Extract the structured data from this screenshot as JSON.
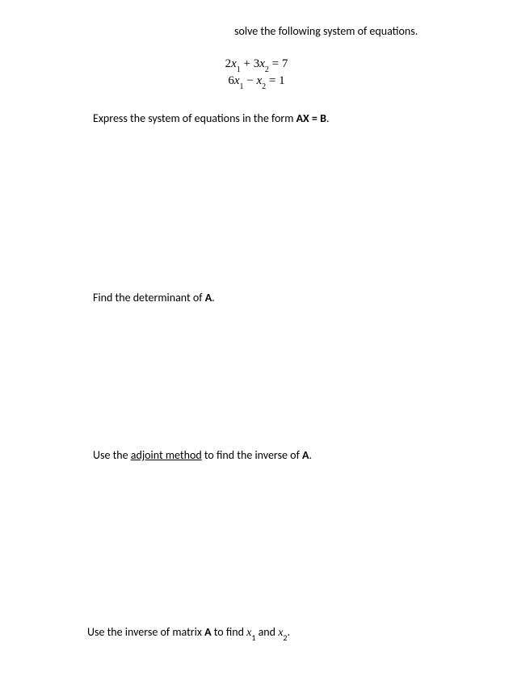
{
  "intro": "solve the following system of equations.",
  "equations": {
    "line1": {
      "lhs_coef1": "2",
      "var1": "x",
      "sub1": "1",
      "op1": " + ",
      "lhs_coef2": "3",
      "var2": "x",
      "sub2": "2",
      "eq": " = ",
      "rhs": "7"
    },
    "line2": {
      "lhs_coef1": "6",
      "var1": "x",
      "sub1": "1",
      "op1": " − ",
      "var2": "x",
      "sub2": "2",
      "eq": " = ",
      "rhs": "1"
    }
  },
  "prompt1": {
    "pre": "Express the system of equations in the form ",
    "ax": "AX",
    "mid": " = ",
    "b": "B",
    "post": "."
  },
  "prompt2": {
    "pre": "Find the determinant of ",
    "a": "A",
    "post": "."
  },
  "prompt3": {
    "pre": "Use the ",
    "u": "adjoint method",
    "mid": " to find the inverse of ",
    "a": "A",
    "post": "."
  },
  "prompt4": {
    "pre": "Use the inverse of matrix ",
    "a": "A",
    "mid": " to find ",
    "x1v": "x",
    "x1s": "1",
    "and": " and ",
    "x2v": "x",
    "x2s": "2",
    "post": "."
  }
}
